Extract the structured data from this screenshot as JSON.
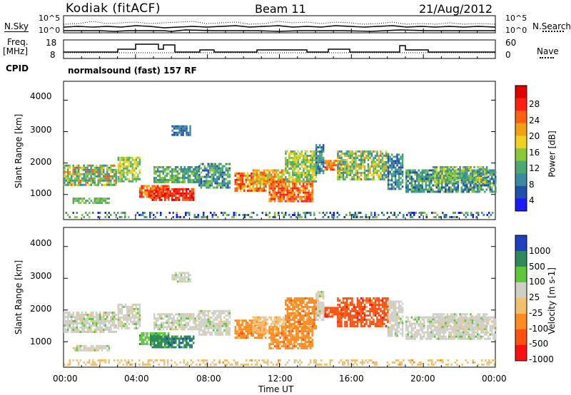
{
  "header": {
    "station": "Kodiak (fitACF)",
    "beam": "Beam 11",
    "date": "21/Aug/2012"
  },
  "top_panels": {
    "nsky_label": "N.Sky",
    "nsearch_label": "N.Search",
    "log_hi": "10^5",
    "log_lo": "10^0",
    "freq_label": "Freq.",
    "freq_unit": "[MHz]",
    "freq_ticks": [
      "18",
      "8"
    ],
    "nave_label": "Nave",
    "nave_ticks": [
      "60",
      "0"
    ],
    "cpid_label": "CPID",
    "cpid_value": "normalsound (fast) 157 RF"
  },
  "chart_data": [
    {
      "type": "heatmap",
      "name": "power",
      "ylabel": "Slant Range [km]",
      "xlabel": "",
      "ylim": [
        200,
        4600
      ],
      "y_ticks": [
        "4000",
        "3000",
        "2000",
        "1000"
      ],
      "colorbar_label": "Power [dB]",
      "colorbar_ticks": [
        "28",
        "24",
        "20",
        "16",
        "12",
        "8",
        "4"
      ],
      "colors": [
        "#1a1aff",
        "#2050a8",
        "#3a8aa0",
        "#4aa870",
        "#8ac83a",
        "#f0d020",
        "#f0a010",
        "#ff6010",
        "#ff2010",
        "#e00000"
      ]
    },
    {
      "type": "heatmap",
      "name": "velocity",
      "ylabel": "Slant Range [km]",
      "xlabel": "Time UT",
      "ylim": [
        200,
        4600
      ],
      "y_ticks": [
        "4000",
        "3000",
        "2000",
        "1000"
      ],
      "x_ticks": [
        "00:00",
        "04:00",
        "08:00",
        "12:00",
        "16:00",
        "20:00",
        "00:00"
      ],
      "colorbar_label": "Velocity [m s-1]",
      "colorbar_ticks": [
        "1000",
        "500",
        "100",
        "25",
        "-25",
        "-100",
        "-500",
        "-1000"
      ],
      "colors": [
        "#2040c0",
        "#2e8a5a",
        "#5ec83a",
        "#cfcfc8",
        "#f0c070",
        "#ff8c20",
        "#ff5010",
        "#ff1010"
      ]
    }
  ]
}
